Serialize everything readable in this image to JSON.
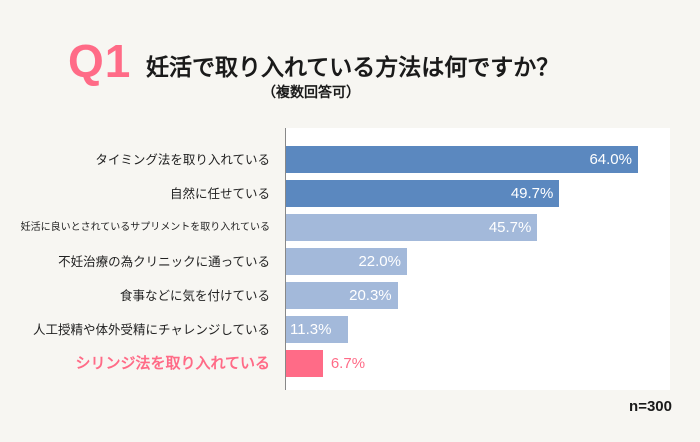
{
  "header": {
    "q_label": "Q1",
    "title": "妊活で取り入れている方法は何ですか？",
    "subtitle": "（複数回答可）"
  },
  "chart_data": {
    "type": "bar",
    "orientation": "horizontal",
    "title": "妊活で取り入れている方法は何ですか？",
    "subtitle": "（複数回答可）",
    "categories": [
      "タイミング法を取り入れている",
      "自然に任せている",
      "妊活に良いとされているサプリメントを取り入れている",
      "不妊治療の為クリニックに通っている",
      "食事などに気を付けている",
      "人工授精や体外受精にチャレンジしている",
      "シリンジ法を取り入れている"
    ],
    "values": [
      64.0,
      49.7,
      45.7,
      22.0,
      20.3,
      11.3,
      6.7
    ],
    "value_labels": [
      "64.0%",
      "49.7%",
      "45.7%",
      "22.0%",
      "20.3%",
      "11.3%",
      "6.7%"
    ],
    "unit": "%",
    "xlim": [
      0,
      70
    ],
    "grid": false,
    "highlight_index": 6,
    "colors": {
      "dark": "#5b88bf",
      "light": "#a3b9da",
      "highlight": "#ff6b87",
      "text_on_bar": "#ffffff"
    },
    "bar_color_groups": [
      "dark",
      "dark",
      "light",
      "light",
      "light",
      "light",
      "highlight"
    ],
    "note": "n=300"
  }
}
